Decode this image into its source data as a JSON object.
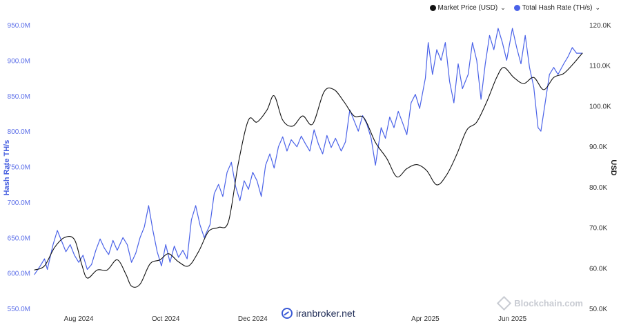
{
  "legend": {
    "market_price": "Market Price (USD)",
    "hash_rate": "Total Hash Rate (TH/s)",
    "chevron": "⌄"
  },
  "watermarks": {
    "blockchain": "Blockchain.com",
    "iranbroker": "iranbroker.net"
  },
  "chart_data": {
    "type": "line",
    "y_left": {
      "label": "Hash Rate TH/s",
      "ticks": [
        "550.0M",
        "600.0M",
        "650.0M",
        "700.0M",
        "750.0M",
        "800.0M",
        "850.0M",
        "900.0M",
        "950.0M"
      ],
      "range": [
        550,
        950
      ],
      "unit": "M TH/s"
    },
    "y_right": {
      "label": "USD",
      "ticks": [
        "50.0K",
        "60.0K",
        "70.0K",
        "80.0K",
        "90.0K",
        "100.0K",
        "110.0K",
        "120.0K"
      ],
      "range": [
        50,
        120
      ],
      "unit": "K USD"
    },
    "x": {
      "range": [
        "2024-07-01",
        "2025-07-22"
      ],
      "ticks": [
        {
          "date": "2024-08-01",
          "label": "Aug 2024"
        },
        {
          "date": "2024-10-01",
          "label": "Oct 2024"
        },
        {
          "date": "2024-12-01",
          "label": "Dec 2024"
        },
        {
          "date": "2025-04-01",
          "label": "Apr 2025"
        },
        {
          "date": "2025-06-01",
          "label": "Jun 2025"
        }
      ]
    },
    "series": [
      {
        "name": "Total Hash Rate (TH/s)",
        "axis": "left",
        "color": "#4a62e8",
        "points": [
          [
            "2024-07-01",
            598
          ],
          [
            "2024-07-05",
            610
          ],
          [
            "2024-07-08",
            620
          ],
          [
            "2024-07-10",
            605
          ],
          [
            "2024-07-14",
            640
          ],
          [
            "2024-07-17",
            660
          ],
          [
            "2024-07-20",
            645
          ],
          [
            "2024-07-23",
            630
          ],
          [
            "2024-07-26",
            640
          ],
          [
            "2024-07-29",
            625
          ],
          [
            "2024-08-01",
            615
          ],
          [
            "2024-08-04",
            625
          ],
          [
            "2024-08-07",
            605
          ],
          [
            "2024-08-10",
            612
          ],
          [
            "2024-08-13",
            632
          ],
          [
            "2024-08-16",
            648
          ],
          [
            "2024-08-19",
            635
          ],
          [
            "2024-08-22",
            626
          ],
          [
            "2024-08-25",
            646
          ],
          [
            "2024-08-28",
            632
          ],
          [
            "2024-09-01",
            650
          ],
          [
            "2024-09-04",
            640
          ],
          [
            "2024-09-07",
            615
          ],
          [
            "2024-09-10",
            628
          ],
          [
            "2024-09-13",
            650
          ],
          [
            "2024-09-16",
            665
          ],
          [
            "2024-09-19",
            695
          ],
          [
            "2024-09-22",
            660
          ],
          [
            "2024-09-25",
            630
          ],
          [
            "2024-09-28",
            610
          ],
          [
            "2024-10-01",
            640
          ],
          [
            "2024-10-04",
            615
          ],
          [
            "2024-10-07",
            638
          ],
          [
            "2024-10-10",
            622
          ],
          [
            "2024-10-13",
            632
          ],
          [
            "2024-10-16",
            620
          ],
          [
            "2024-10-19",
            675
          ],
          [
            "2024-10-22",
            695
          ],
          [
            "2024-10-25",
            668
          ],
          [
            "2024-10-28",
            650
          ],
          [
            "2024-11-01",
            668
          ],
          [
            "2024-11-04",
            712
          ],
          [
            "2024-11-07",
            725
          ],
          [
            "2024-11-10",
            708
          ],
          [
            "2024-11-13",
            742
          ],
          [
            "2024-11-16",
            756
          ],
          [
            "2024-11-19",
            722
          ],
          [
            "2024-11-22",
            702
          ],
          [
            "2024-11-25",
            730
          ],
          [
            "2024-11-28",
            718
          ],
          [
            "2024-12-01",
            742
          ],
          [
            "2024-12-04",
            730
          ],
          [
            "2024-12-07",
            708
          ],
          [
            "2024-12-10",
            752
          ],
          [
            "2024-12-13",
            768
          ],
          [
            "2024-12-16",
            748
          ],
          [
            "2024-12-19",
            778
          ],
          [
            "2024-12-22",
            792
          ],
          [
            "2024-12-25",
            772
          ],
          [
            "2024-12-28",
            788
          ],
          [
            "2025-01-01",
            778
          ],
          [
            "2025-01-04",
            793
          ],
          [
            "2025-01-07",
            782
          ],
          [
            "2025-01-10",
            772
          ],
          [
            "2025-01-13",
            802
          ],
          [
            "2025-01-16",
            782
          ],
          [
            "2025-01-19",
            768
          ],
          [
            "2025-01-22",
            794
          ],
          [
            "2025-01-25",
            777
          ],
          [
            "2025-01-28",
            790
          ],
          [
            "2025-02-01",
            772
          ],
          [
            "2025-02-04",
            785
          ],
          [
            "2025-02-07",
            830
          ],
          [
            "2025-02-10",
            815
          ],
          [
            "2025-02-13",
            800
          ],
          [
            "2025-02-16",
            822
          ],
          [
            "2025-02-19",
            810
          ],
          [
            "2025-02-22",
            790
          ],
          [
            "2025-02-25",
            752
          ],
          [
            "2025-03-01",
            805
          ],
          [
            "2025-03-04",
            790
          ],
          [
            "2025-03-07",
            820
          ],
          [
            "2025-03-10",
            805
          ],
          [
            "2025-03-13",
            828
          ],
          [
            "2025-03-16",
            812
          ],
          [
            "2025-03-19",
            795
          ],
          [
            "2025-03-22",
            840
          ],
          [
            "2025-03-25",
            852
          ],
          [
            "2025-03-28",
            832
          ],
          [
            "2025-04-01",
            875
          ],
          [
            "2025-04-03",
            925
          ],
          [
            "2025-04-06",
            880
          ],
          [
            "2025-04-09",
            915
          ],
          [
            "2025-04-12",
            900
          ],
          [
            "2025-04-15",
            925
          ],
          [
            "2025-04-18",
            870
          ],
          [
            "2025-04-21",
            840
          ],
          [
            "2025-04-24",
            895
          ],
          [
            "2025-04-27",
            860
          ],
          [
            "2025-05-01",
            880
          ],
          [
            "2025-05-04",
            925
          ],
          [
            "2025-05-07",
            900
          ],
          [
            "2025-05-10",
            845
          ],
          [
            "2025-05-13",
            895
          ],
          [
            "2025-05-16",
            935
          ],
          [
            "2025-05-19",
            915
          ],
          [
            "2025-05-22",
            945
          ],
          [
            "2025-05-25",
            925
          ],
          [
            "2025-05-28",
            900
          ],
          [
            "2025-06-01",
            945
          ],
          [
            "2025-06-04",
            918
          ],
          [
            "2025-06-07",
            895
          ],
          [
            "2025-06-10",
            935
          ],
          [
            "2025-06-13",
            890
          ],
          [
            "2025-06-16",
            862
          ],
          [
            "2025-06-19",
            805
          ],
          [
            "2025-06-21",
            800
          ],
          [
            "2025-06-24",
            840
          ],
          [
            "2025-06-27",
            880
          ],
          [
            "2025-06-30",
            890
          ],
          [
            "2025-07-03",
            880
          ],
          [
            "2025-07-07",
            895
          ],
          [
            "2025-07-10",
            905
          ],
          [
            "2025-07-13",
            918
          ],
          [
            "2025-07-16",
            910
          ],
          [
            "2025-07-20",
            910
          ]
        ]
      },
      {
        "name": "Market Price (USD)",
        "axis": "right",
        "color": "#111111",
        "points": [
          [
            "2024-07-01",
            59.5
          ],
          [
            "2024-07-08",
            60.5
          ],
          [
            "2024-07-15",
            65
          ],
          [
            "2024-07-22",
            67.5
          ],
          [
            "2024-07-29",
            67
          ],
          [
            "2024-08-03",
            61
          ],
          [
            "2024-08-07",
            57.5
          ],
          [
            "2024-08-14",
            59.5
          ],
          [
            "2024-08-21",
            59.5
          ],
          [
            "2024-08-28",
            62
          ],
          [
            "2024-09-03",
            58.5
          ],
          [
            "2024-09-07",
            55.5
          ],
          [
            "2024-09-13",
            56
          ],
          [
            "2024-09-20",
            61
          ],
          [
            "2024-09-27",
            62
          ],
          [
            "2024-10-03",
            63.5
          ],
          [
            "2024-10-10",
            61.5
          ],
          [
            "2024-10-17",
            60.5
          ],
          [
            "2024-10-24",
            64
          ],
          [
            "2024-10-31",
            69
          ],
          [
            "2024-11-07",
            70
          ],
          [
            "2024-11-14",
            71.5
          ],
          [
            "2024-11-21",
            86
          ],
          [
            "2024-11-28",
            96.5
          ],
          [
            "2024-12-04",
            96
          ],
          [
            "2024-12-11",
            99
          ],
          [
            "2024-12-16",
            102.5
          ],
          [
            "2024-12-22",
            96.5
          ],
          [
            "2024-12-29",
            95
          ],
          [
            "2025-01-05",
            97.5
          ],
          [
            "2025-01-12",
            95.5
          ],
          [
            "2025-01-20",
            103.5
          ],
          [
            "2025-01-27",
            104
          ],
          [
            "2025-02-03",
            101
          ],
          [
            "2025-02-10",
            97.5
          ],
          [
            "2025-02-17",
            97
          ],
          [
            "2025-02-25",
            91
          ],
          [
            "2025-03-05",
            87
          ],
          [
            "2025-03-12",
            82.5
          ],
          [
            "2025-03-19",
            84.5
          ],
          [
            "2025-03-26",
            85.5
          ],
          [
            "2025-04-02",
            84
          ],
          [
            "2025-04-09",
            80.5
          ],
          [
            "2025-04-16",
            83
          ],
          [
            "2025-04-23",
            88
          ],
          [
            "2025-04-30",
            94
          ],
          [
            "2025-05-07",
            96
          ],
          [
            "2025-05-14",
            101
          ],
          [
            "2025-05-21",
            107
          ],
          [
            "2025-05-26",
            109.5
          ],
          [
            "2025-06-02",
            107
          ],
          [
            "2025-06-09",
            105.5
          ],
          [
            "2025-06-16",
            107
          ],
          [
            "2025-06-23",
            104
          ],
          [
            "2025-06-30",
            107
          ],
          [
            "2025-07-07",
            108
          ],
          [
            "2025-07-14",
            110.5
          ],
          [
            "2025-07-20",
            113
          ]
        ]
      }
    ]
  }
}
